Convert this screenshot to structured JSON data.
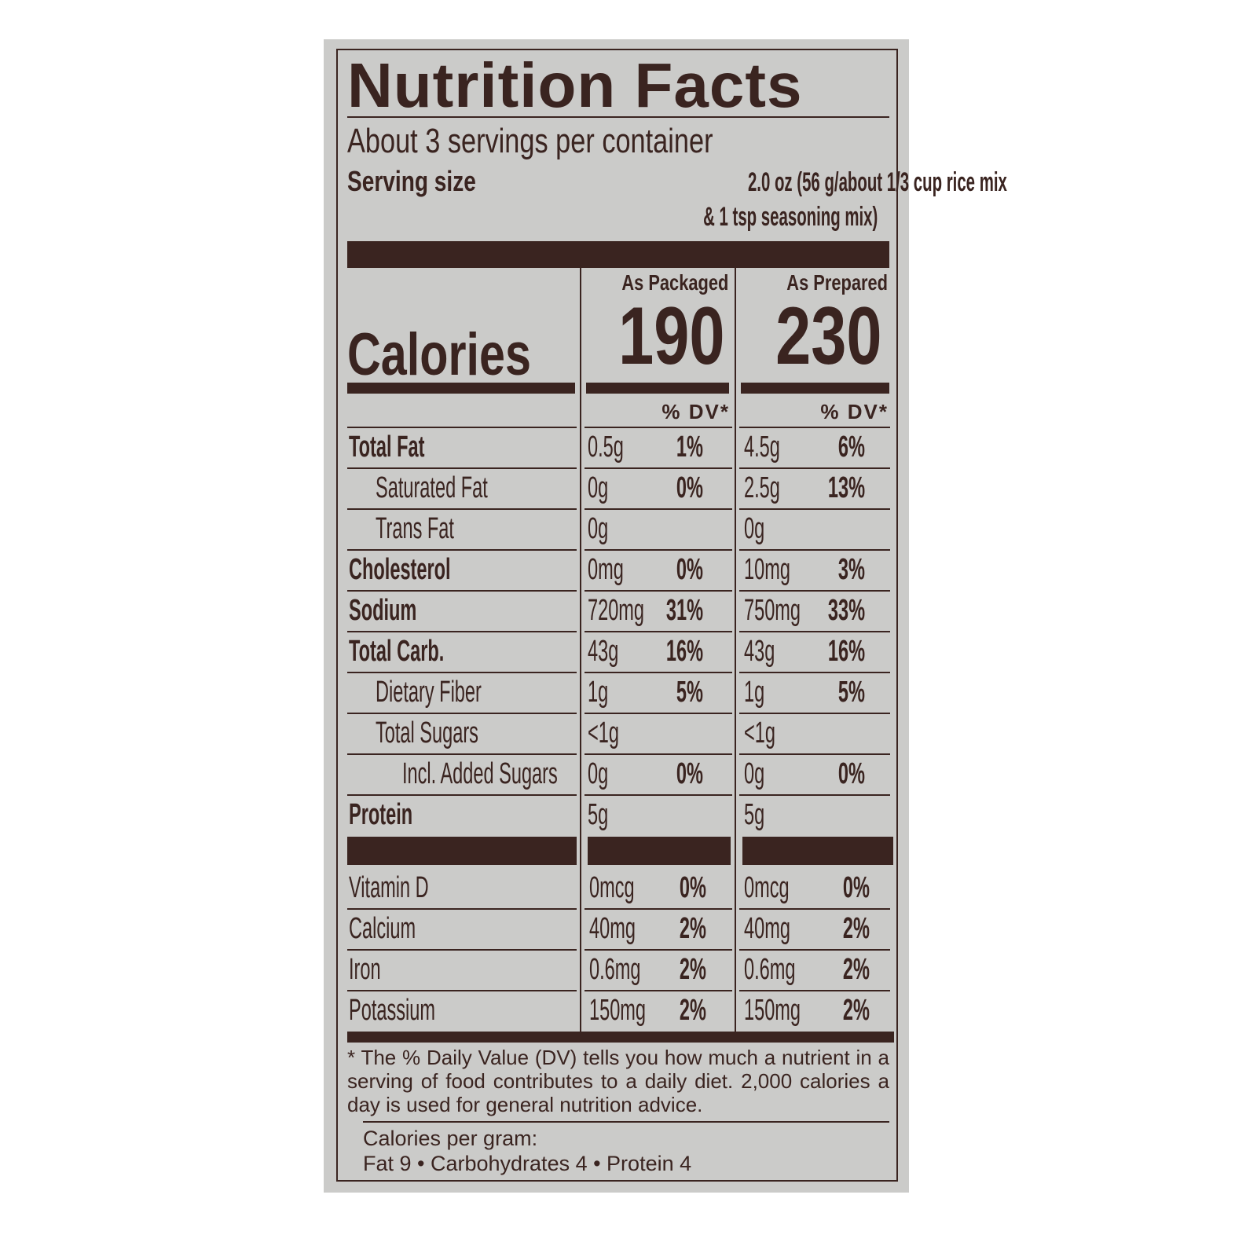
{
  "title": "Nutrition Facts",
  "servings_per_container": "About 3 servings per container",
  "serving_size": {
    "label": "Serving size",
    "value_line1": "2.0 oz (56 g/about 1/3 cup rice mix",
    "value_line2": "& 1 tsp seasoning mix)"
  },
  "columns": {
    "packaged": "As Packaged",
    "prepared": "As Prepared",
    "dv_header": "% DV*"
  },
  "calories": {
    "label": "Calories",
    "packaged": "190",
    "prepared": "230"
  },
  "nutrients": [
    {
      "name": "Total Fat",
      "bold": true,
      "indent": 0,
      "pk_amt": "0.5g",
      "pk_dv": "1%",
      "pr_amt": "4.5g",
      "pr_dv": "6%"
    },
    {
      "name": "Saturated Fat",
      "bold": false,
      "indent": 1,
      "pk_amt": "0g",
      "pk_dv": "0%",
      "pr_amt": "2.5g",
      "pr_dv": "13%"
    },
    {
      "name": "Trans Fat",
      "bold": false,
      "indent": 1,
      "pk_amt": "0g",
      "pk_dv": "",
      "pr_amt": "0g",
      "pr_dv": ""
    },
    {
      "name": "Cholesterol",
      "bold": true,
      "indent": 0,
      "pk_amt": "0mg",
      "pk_dv": "0%",
      "pr_amt": "10mg",
      "pr_dv": "3%"
    },
    {
      "name": "Sodium",
      "bold": true,
      "indent": 0,
      "pk_amt": "720mg",
      "pk_dv": "31%",
      "pr_amt": "750mg",
      "pr_dv": "33%"
    },
    {
      "name": "Total Carb.",
      "bold": true,
      "indent": 0,
      "pk_amt": "43g",
      "pk_dv": "16%",
      "pr_amt": "43g",
      "pr_dv": "16%"
    },
    {
      "name": "Dietary Fiber",
      "bold": false,
      "indent": 1,
      "pk_amt": "1g",
      "pk_dv": "5%",
      "pr_amt": "1g",
      "pr_dv": "5%"
    },
    {
      "name": "Total Sugars",
      "bold": false,
      "indent": 1,
      "pk_amt": "<1g",
      "pk_dv": "",
      "pr_amt": "<1g",
      "pr_dv": ""
    },
    {
      "name": "Incl. Added Sugars",
      "bold": false,
      "indent": 2,
      "pk_amt": "0g",
      "pk_dv": "0%",
      "pr_amt": "0g",
      "pr_dv": "0%"
    },
    {
      "name": "Protein",
      "bold": true,
      "indent": 0,
      "pk_amt": "5g",
      "pk_dv": "",
      "pr_amt": "5g",
      "pr_dv": ""
    }
  ],
  "vitamins": [
    {
      "name": "Vitamin D",
      "pk_amt": "0mcg",
      "pk_dv": "0%",
      "pr_amt": "0mcg",
      "pr_dv": "0%"
    },
    {
      "name": "Calcium",
      "pk_amt": "40mg",
      "pk_dv": "2%",
      "pr_amt": "40mg",
      "pr_dv": "2%"
    },
    {
      "name": "Iron",
      "pk_amt": "0.6mg",
      "pk_dv": "2%",
      "pr_amt": "0.6mg",
      "pr_dv": "2%"
    },
    {
      "name": "Potassium",
      "pk_amt": "150mg",
      "pk_dv": "2%",
      "pr_amt": "150mg",
      "pr_dv": "2%"
    }
  ],
  "footnote": "* The % Daily Value (DV) tells you how much a nutrient in a serving of food contributes to a daily diet. 2,000 calories a day is used for general nutrition advice.",
  "calories_per_gram": {
    "label": "Calories per gram:",
    "values": "Fat 9 • Carbohydrates 4 • Protein 4"
  },
  "colors": {
    "ink": "#3a2420",
    "background": "#cbcbc9"
  }
}
